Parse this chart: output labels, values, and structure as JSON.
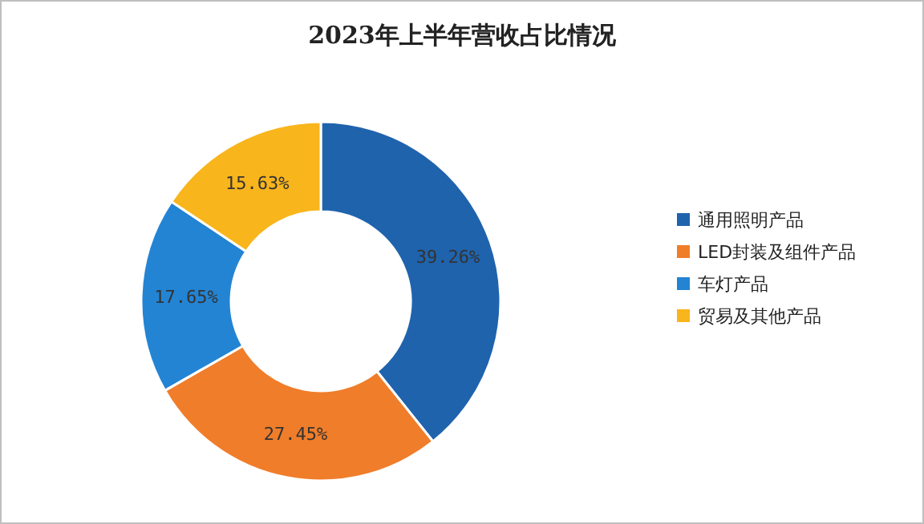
{
  "chart_data": {
    "type": "donut",
    "title": "2023年上半年营收占比情况",
    "categories": [
      "通用照明产品",
      "LED封装及组件产品",
      "车灯产品",
      "贸易及其他产品"
    ],
    "values": [
      39.26,
      27.45,
      17.65,
      15.63
    ],
    "value_labels": [
      "39.26%",
      "27.45%",
      "17.65%",
      "15.63%"
    ],
    "colors": [
      "#1f63ad",
      "#f07d2a",
      "#2384d4",
      "#f8b51c"
    ],
    "legend": "right"
  }
}
